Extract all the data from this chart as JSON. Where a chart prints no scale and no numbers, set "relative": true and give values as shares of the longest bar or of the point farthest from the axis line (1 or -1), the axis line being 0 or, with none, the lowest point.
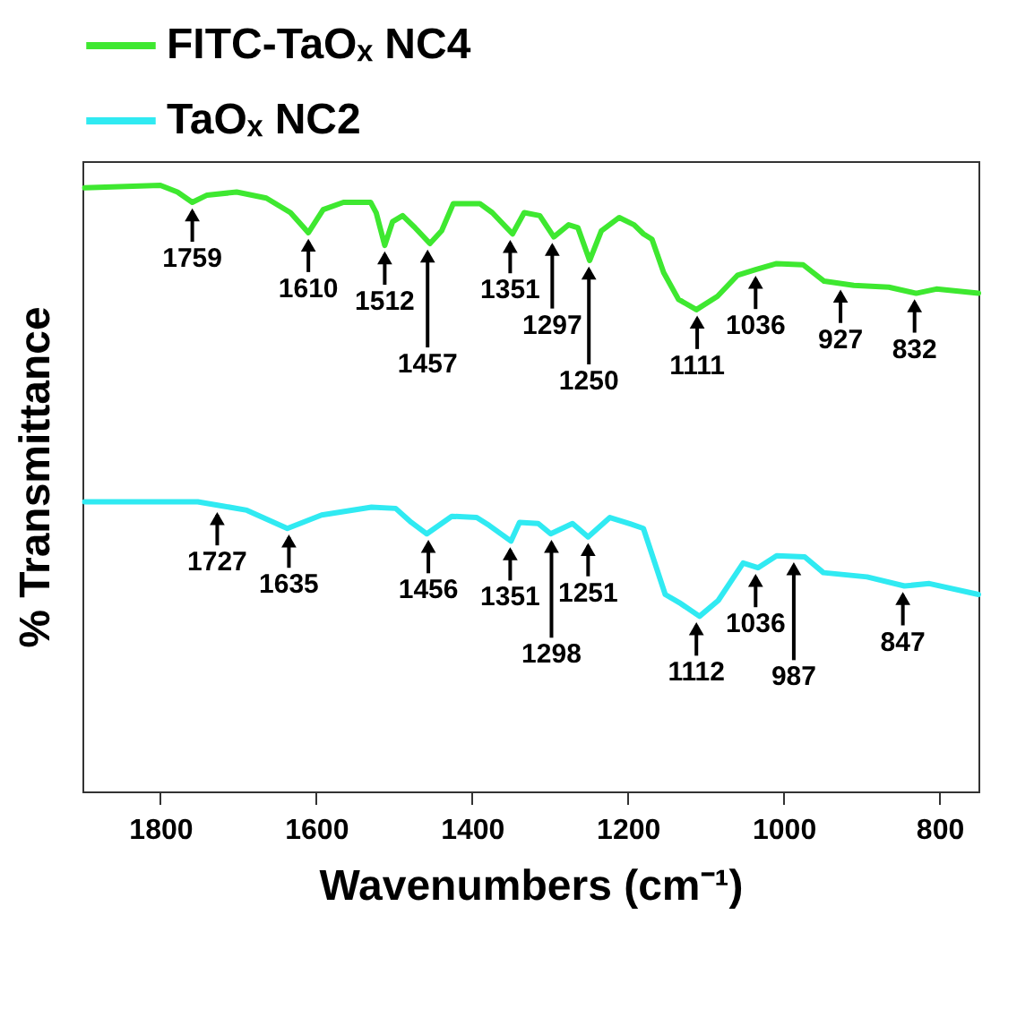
{
  "chart_data": {
    "type": "line",
    "xlabel": "Wavenumbers (cm⁻¹)",
    "ylabel": "% Transmittance",
    "relative": true,
    "xlim": [
      1900,
      750
    ],
    "xticks": [
      1800,
      1600,
      1400,
      1200,
      1000,
      800
    ],
    "legend": "top",
    "marker": "none",
    "line_style": "solid",
    "grid": false,
    "series": [
      {
        "name": "FITC-TaOₓ NC4",
        "color": "#3ee830",
        "x": [
          1897,
          1800,
          1778,
          1759,
          1740,
          1702,
          1664,
          1633,
          1610,
          1591,
          1565,
          1530,
          1523,
          1512,
          1502,
          1489,
          1473,
          1454,
          1439,
          1424,
          1390,
          1374,
          1348,
          1333,
          1313,
          1295,
          1276,
          1264,
          1249,
          1234,
          1211,
          1192,
          1180,
          1169,
          1154,
          1135,
          1112,
          1085,
          1059,
          1036,
          1009,
          975,
          948,
          910,
          865,
          830,
          804,
          750
        ],
        "values": [
          0.996,
          1,
          0.989,
          0.972,
          0.984,
          0.989,
          0.979,
          0.955,
          0.922,
          0.96,
          0.972,
          0.972,
          0.955,
          0.901,
          0.94,
          0.95,
          0.93,
          0.904,
          0.925,
          0.97,
          0.97,
          0.955,
          0.92,
          0.955,
          0.95,
          0.915,
          0.935,
          0.93,
          0.876,
          0.925,
          0.947,
          0.935,
          0.92,
          0.911,
          0.856,
          0.812,
          0.795,
          0.817,
          0.852,
          0.861,
          0.871,
          0.869,
          0.842,
          0.835,
          0.832,
          0.822,
          0.829,
          0.822
        ]
      },
      {
        "name": "TaOₓ NC2",
        "color": "#30eaf2",
        "x": [
          1897,
          1752,
          1720,
          1689,
          1637,
          1593,
          1529,
          1498,
          1478,
          1458,
          1426,
          1394,
          1378,
          1350,
          1339,
          1315,
          1299,
          1271,
          1251,
          1223,
          1196,
          1180,
          1152,
          1132,
          1108,
          1084,
          1052,
          1033,
          1009,
          973,
          949,
          893,
          845,
          813,
          750
        ],
        "values": [
          0.478,
          0.478,
          0.471,
          0.464,
          0.434,
          0.456,
          0.469,
          0.467,
          0.444,
          0.425,
          0.454,
          0.452,
          0.439,
          0.413,
          0.444,
          0.442,
          0.425,
          0.442,
          0.42,
          0.452,
          0.441,
          0.434,
          0.325,
          0.31,
          0.289,
          0.315,
          0.377,
          0.369,
          0.389,
          0.387,
          0.361,
          0.354,
          0.339,
          0.343,
          0.325
        ]
      }
    ],
    "annotations": [
      {
        "text": "1759",
        "x": 1759,
        "y": 0.972
      },
      {
        "text": "1610",
        "x": 1610,
        "y": 0.922
      },
      {
        "text": "1512",
        "x": 1512,
        "y": 0.901
      },
      {
        "text": "1457",
        "x": 1457,
        "y": 0.904
      },
      {
        "text": "1351",
        "x": 1351,
        "y": 0.92
      },
      {
        "text": "1297",
        "x": 1297,
        "y": 0.915
      },
      {
        "text": "1250",
        "x": 1250,
        "y": 0.876
      },
      {
        "text": "1111",
        "x": 1111,
        "y": 0.795
      },
      {
        "text": "1036",
        "x": 1036,
        "y": 0.861
      },
      {
        "text": "927",
        "x": 927,
        "y": 0.838
      },
      {
        "text": "832",
        "x": 832,
        "y": 0.822
      },
      {
        "text": "1727",
        "x": 1727,
        "y": 0.471
      },
      {
        "text": "1635",
        "x": 1635,
        "y": 0.434
      },
      {
        "text": "1456",
        "x": 1456,
        "y": 0.425
      },
      {
        "text": "1351",
        "x": 1351,
        "y": 0.413
      },
      {
        "text": "1298",
        "x": 1298,
        "y": 0.425
      },
      {
        "text": "1251",
        "x": 1251,
        "y": 0.42
      },
      {
        "text": "1112",
        "x": 1112,
        "y": 0.289
      },
      {
        "text": "1036",
        "x": 1036,
        "y": 0.369
      },
      {
        "text": "987",
        "x": 987,
        "y": 0.388
      },
      {
        "text": "847",
        "x": 847,
        "y": 0.339
      }
    ]
  }
}
